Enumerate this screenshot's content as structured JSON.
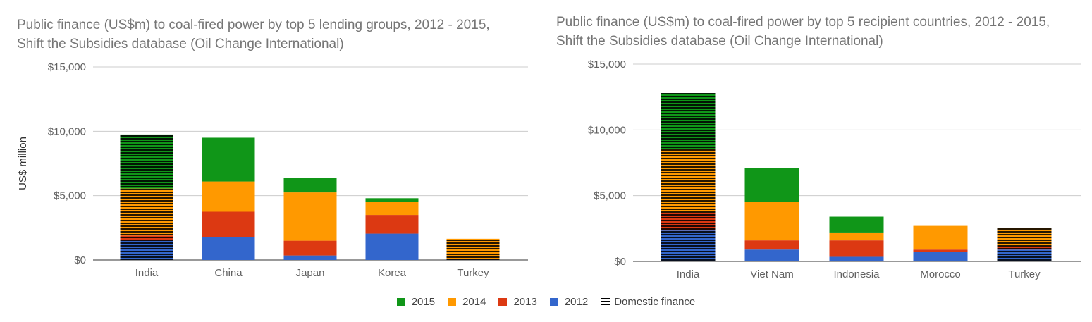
{
  "chart_data": [
    {
      "type": "bar",
      "stacked": true,
      "title_lines": [
        "Public finance (US$m) to coal-fired power by top 5 lending groups, 2012 - 2015,",
        "Shift the Subsidies database (Oil Change International)"
      ],
      "ylabel": "US$ million",
      "ylim": [
        0,
        15000
      ],
      "yticks": [
        "$0",
        "$5,000",
        "$10,000",
        "$15,000"
      ],
      "grid": true,
      "categories": [
        "India",
        "China",
        "Japan",
        "Korea",
        "Turkey"
      ],
      "series": [
        {
          "name": "2012",
          "values": [
            1500,
            1800,
            350,
            2050,
            50
          ]
        },
        {
          "name": "2013",
          "values": [
            400,
            1950,
            1150,
            1450,
            50
          ]
        },
        {
          "name": "2014",
          "values": [
            3650,
            2350,
            3750,
            1000,
            1550
          ]
        },
        {
          "name": "2015",
          "values": [
            4200,
            3400,
            1100,
            300,
            0
          ]
        }
      ],
      "domestic_finance": [
        true,
        false,
        false,
        false,
        true
      ]
    },
    {
      "type": "bar",
      "stacked": true,
      "title_lines": [
        "Public finance (US$m) to coal-fired power by top 5 recipient countries, 2012 - 2015,",
        "Shift the Subsidies database (Oil Change International)"
      ],
      "ylabel": "",
      "ylim": [
        0,
        15000
      ],
      "yticks": [
        "$0",
        "$5,000",
        "$10,000",
        "$15,000"
      ],
      "grid": true,
      "categories": [
        "India",
        "Viet Nam",
        "Indonesia",
        "Morocco",
        "Turkey"
      ],
      "series": [
        {
          "name": "2012",
          "values": [
            2350,
            900,
            350,
            750,
            900
          ]
        },
        {
          "name": "2013",
          "values": [
            1350,
            700,
            1250,
            150,
            250
          ]
        },
        {
          "name": "2014",
          "values": [
            4850,
            2950,
            600,
            1800,
            1400
          ]
        },
        {
          "name": "2015",
          "values": [
            4250,
            2550,
            1200,
            0,
            0
          ]
        }
      ],
      "domestic_finance": [
        true,
        false,
        false,
        false,
        true
      ]
    }
  ],
  "legend": {
    "placement": "bottom-center",
    "items": [
      {
        "label": "2015",
        "color": "#109618"
      },
      {
        "label": "2014",
        "color": "#ff9900"
      },
      {
        "label": "2013",
        "color": "#dc3912"
      },
      {
        "label": "2012",
        "color": "#3366cc"
      }
    ],
    "domestic_label": "Domestic finance"
  },
  "colors": {
    "2012": "#3366cc",
    "2013": "#dc3912",
    "2014": "#ff9900",
    "2015": "#109618"
  }
}
